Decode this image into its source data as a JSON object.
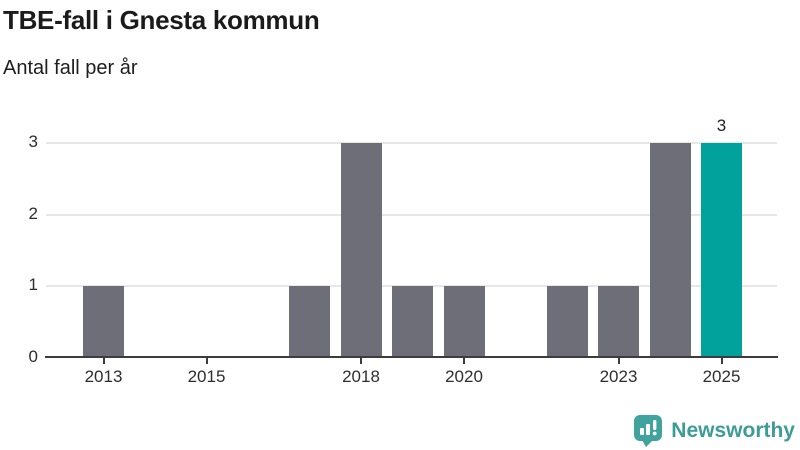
{
  "header": {
    "title": "TBE-fall i Gnesta kommun",
    "subtitle": "Antal fall per år"
  },
  "chart_data": {
    "type": "bar",
    "title": "TBE-fall i Gnesta kommun",
    "subtitle": "Antal fall per år",
    "xlabel": "",
    "ylabel": "Antal fall per år",
    "categories": [
      "2013",
      "2014",
      "2015",
      "2016",
      "2017",
      "2018",
      "2019",
      "2020",
      "2021",
      "2022",
      "2023",
      "2024",
      "2025"
    ],
    "values": [
      1,
      0,
      0,
      0,
      1,
      3,
      1,
      1,
      0,
      1,
      1,
      3,
      3
    ],
    "x_tick_labels": [
      "2013",
      "2015",
      "2018",
      "2020",
      "2023",
      "2025"
    ],
    "y_ticks": [
      0,
      1,
      2,
      3
    ],
    "ylim": [
      0,
      3
    ],
    "grid": "horizontal",
    "legend": "none",
    "bar_color": "#6E6E78",
    "highlight": {
      "index": 12,
      "color": "#00A29B",
      "label": "3"
    },
    "axis_color": "#3c3c3c",
    "gridline_color": "#e7e7e7"
  },
  "branding": {
    "logo_text": "Newsworthy",
    "logo_color": "#3E9C96",
    "logo_icon": "speech-bubble-bar-chart-exclamation-icon",
    "logo_icon_color": "#41A39E"
  }
}
